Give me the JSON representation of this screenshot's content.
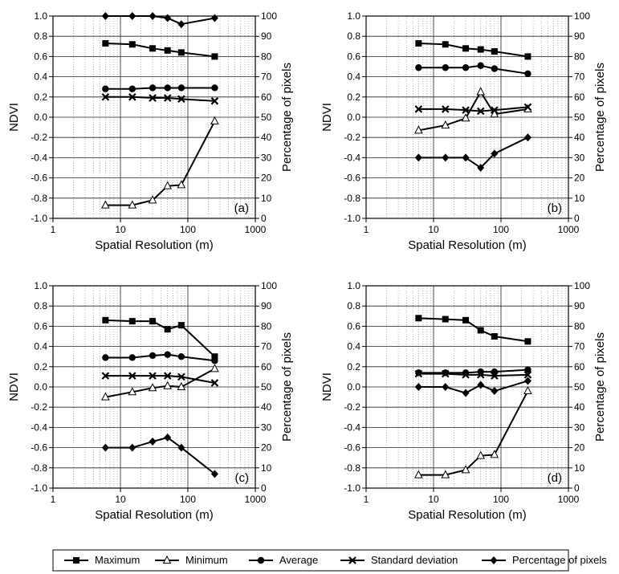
{
  "axis_labels": {
    "x": "Spatial Resolution (m)",
    "y_left": "NDVI",
    "y_right": "Percentage of pixels"
  },
  "x_ticks": [
    "1",
    "10",
    "100",
    "1000"
  ],
  "y_left_ticks": [
    "-1.0",
    "-0.8",
    "-0.6",
    "-0.4",
    "-0.2",
    "0.0",
    "0.2",
    "0.4",
    "0.6",
    "0.8",
    "1.0"
  ],
  "y_right_ticks": [
    "0",
    "10",
    "20",
    "30",
    "40",
    "50",
    "60",
    "70",
    "80",
    "90",
    "100"
  ],
  "legend": {
    "items": [
      {
        "label": "Maximum",
        "marker": "filled-square"
      },
      {
        "label": "Minimum",
        "marker": "open-triangle"
      },
      {
        "label": "Average",
        "marker": "filled-circle"
      },
      {
        "label": "Standard deviation",
        "marker": "x-cross"
      },
      {
        "label": "Percentage of pixels",
        "marker": "filled-diamond"
      }
    ]
  },
  "chart_data": [
    {
      "type": "line",
      "panel_label": "(a)",
      "xscale": "log",
      "xlim": [
        1,
        1000
      ],
      "ylim": [
        -1.0,
        1.0
      ],
      "y2lim": [
        0,
        100
      ],
      "grid": true,
      "x": [
        6,
        15,
        30,
        50,
        80,
        250
      ],
      "series": [
        {
          "name": "Maximum",
          "axis": "left",
          "values": [
            0.73,
            0.72,
            0.68,
            0.66,
            0.64,
            0.6
          ]
        },
        {
          "name": "Minimum",
          "axis": "left",
          "values": [
            -0.87,
            -0.87,
            -0.82,
            -0.68,
            -0.67,
            -0.04
          ]
        },
        {
          "name": "Average",
          "axis": "left",
          "values": [
            0.28,
            0.28,
            0.29,
            0.29,
            0.29,
            0.29
          ]
        },
        {
          "name": "Standard deviation",
          "axis": "left",
          "values": [
            0.2,
            0.2,
            0.19,
            0.19,
            0.18,
            0.16
          ]
        },
        {
          "name": "Percentage of pixels",
          "axis": "right",
          "values": [
            100,
            100,
            100,
            99,
            96,
            99
          ]
        }
      ]
    },
    {
      "type": "line",
      "panel_label": "(b)",
      "xscale": "log",
      "xlim": [
        1,
        1000
      ],
      "ylim": [
        -1.0,
        1.0
      ],
      "y2lim": [
        0,
        100
      ],
      "grid": true,
      "x": [
        6,
        15,
        30,
        50,
        80,
        250
      ],
      "series": [
        {
          "name": "Maximum",
          "axis": "left",
          "values": [
            0.73,
            0.72,
            0.68,
            0.67,
            0.65,
            0.6
          ]
        },
        {
          "name": "Minimum",
          "axis": "left",
          "values": [
            -0.13,
            -0.08,
            -0.01,
            0.25,
            0.03,
            0.08
          ]
        },
        {
          "name": "Average",
          "axis": "left",
          "values": [
            0.49,
            0.49,
            0.49,
            0.51,
            0.48,
            0.43
          ]
        },
        {
          "name": "Standard deviation",
          "axis": "left",
          "values": [
            0.08,
            0.08,
            0.07,
            0.06,
            0.07,
            0.1
          ]
        },
        {
          "name": "Percentage of pixels",
          "axis": "right",
          "values": [
            30,
            30,
            30,
            25,
            32,
            40
          ]
        }
      ]
    },
    {
      "type": "line",
      "panel_label": "(c)",
      "xscale": "log",
      "xlim": [
        1,
        1000
      ],
      "ylim": [
        -1.0,
        1.0
      ],
      "y2lim": [
        0,
        100
      ],
      "grid": true,
      "x": [
        6,
        15,
        30,
        50,
        80,
        250
      ],
      "series": [
        {
          "name": "Maximum",
          "axis": "left",
          "values": [
            0.66,
            0.65,
            0.65,
            0.57,
            0.61,
            0.3
          ]
        },
        {
          "name": "Minimum",
          "axis": "left",
          "values": [
            -0.1,
            -0.05,
            -0.01,
            0.01,
            0.0,
            0.18
          ]
        },
        {
          "name": "Average",
          "axis": "left",
          "values": [
            0.29,
            0.29,
            0.31,
            0.32,
            0.3,
            0.26
          ]
        },
        {
          "name": "Standard deviation",
          "axis": "left",
          "values": [
            0.11,
            0.11,
            0.11,
            0.11,
            0.1,
            0.04
          ]
        },
        {
          "name": "Percentage of pixels",
          "axis": "right",
          "values": [
            20,
            20,
            23,
            25,
            20,
            7
          ]
        }
      ]
    },
    {
      "type": "line",
      "panel_label": "(d)",
      "xscale": "log",
      "xlim": [
        1,
        1000
      ],
      "ylim": [
        -1.0,
        1.0
      ],
      "y2lim": [
        0,
        100
      ],
      "grid": true,
      "x": [
        6,
        15,
        30,
        50,
        80,
        250
      ],
      "series": [
        {
          "name": "Maximum",
          "axis": "left",
          "values": [
            0.68,
            0.67,
            0.66,
            0.56,
            0.5,
            0.45
          ]
        },
        {
          "name": "Minimum",
          "axis": "left",
          "values": [
            -0.87,
            -0.87,
            -0.82,
            -0.68,
            -0.67,
            -0.04
          ]
        },
        {
          "name": "Average",
          "axis": "left",
          "values": [
            0.14,
            0.14,
            0.14,
            0.15,
            0.15,
            0.17
          ]
        },
        {
          "name": "Standard deviation",
          "axis": "left",
          "values": [
            0.13,
            0.13,
            0.12,
            0.12,
            0.11,
            0.12
          ]
        },
        {
          "name": "Percentage of pixels",
          "axis": "right",
          "values": [
            50,
            50,
            47,
            51,
            48,
            53
          ]
        }
      ]
    }
  ]
}
